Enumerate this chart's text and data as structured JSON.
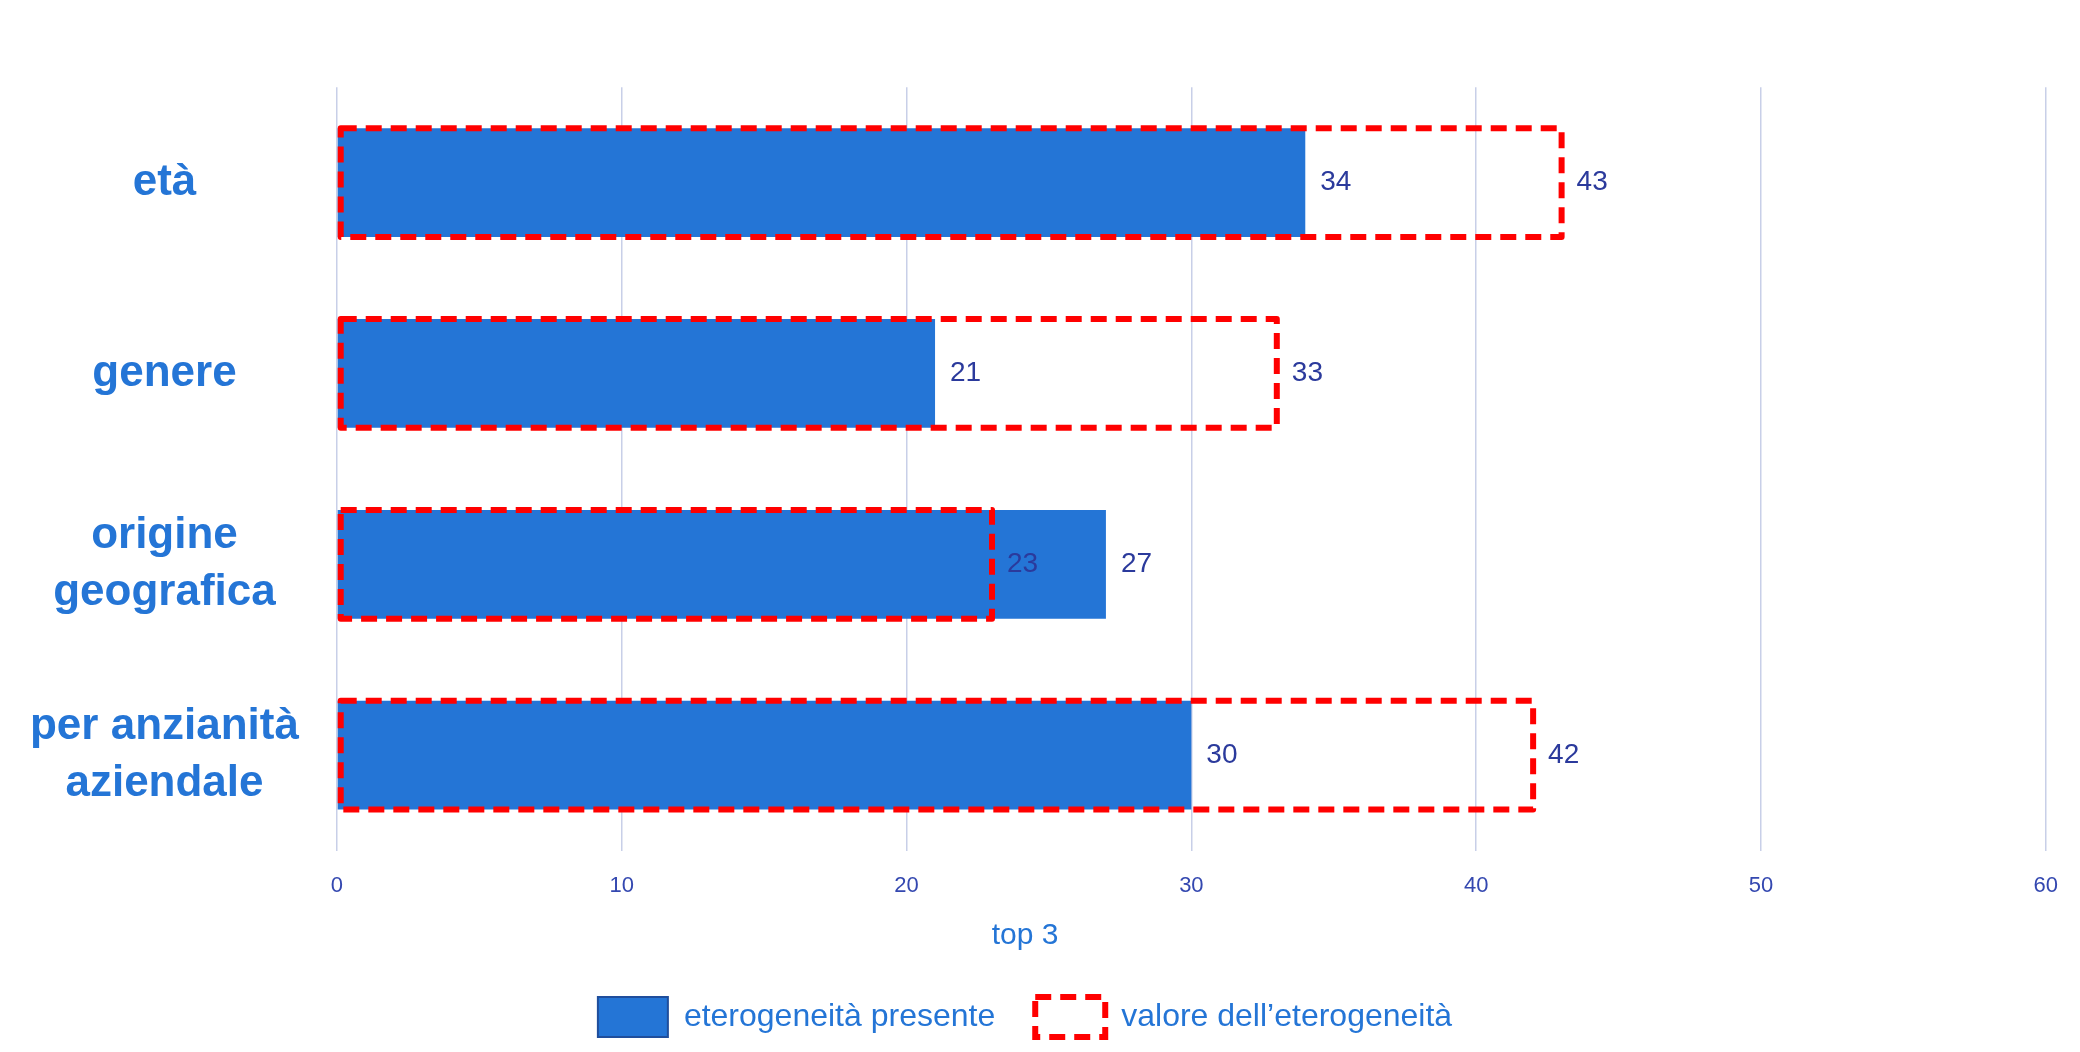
{
  "chart_data": {
    "type": "bar",
    "orientation": "horizontal",
    "categories": [
      "età",
      "genere",
      "origine geografica",
      "per anzianità aziendale"
    ],
    "series": [
      {
        "name": "eterogeneità presente",
        "color": "#2475d6",
        "values": [
          34,
          21,
          27,
          30
        ]
      },
      {
        "name": "valore dell’eterogeneità",
        "color": "#ff0000",
        "line_style": "dashed",
        "values": [
          43,
          33,
          23,
          42
        ]
      }
    ],
    "xlim": [
      0,
      60
    ],
    "xticks": [
      0,
      10,
      20,
      30,
      40,
      50,
      60
    ],
    "grid": "x",
    "legend": "bottom",
    "legend_title": "top 3",
    "data_labels": true
  }
}
